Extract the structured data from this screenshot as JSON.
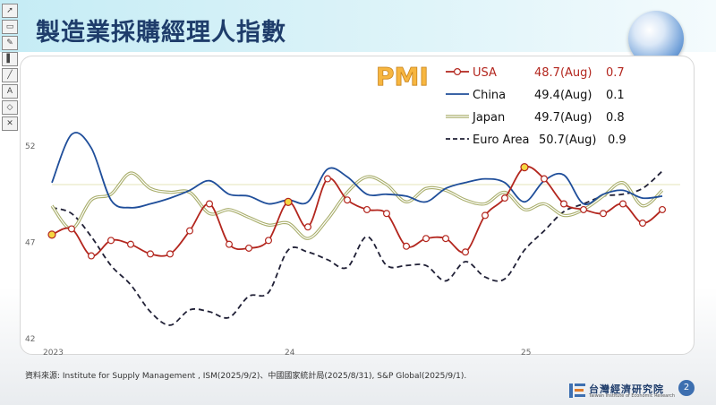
{
  "page": {
    "title": "製造業採購經理人指數",
    "source": "資料來源: Institute for Supply Management , ISM(2025/9/2)、中國國家統計局(2025/8/31), S&P Global(2025/9/1).",
    "logo_text": "台灣經濟研究院",
    "logo_sub": "Taiwan Institute of Economic Research",
    "page_number": "2",
    "toolbar_icons": [
      "pointer-icon",
      "eraser-icon",
      "pen-icon",
      "highlighter-icon",
      "line-icon",
      "text-icon",
      "shape-icon",
      "exit-icon"
    ]
  },
  "chart_data": {
    "type": "line",
    "title": "PMI",
    "x_tick_labels": [
      "2023",
      "24",
      "25"
    ],
    "y_tick_labels": [
      "52",
      "47",
      "42"
    ],
    "ylim": [
      42,
      52.5
    ],
    "legend_position": "top-right",
    "x": [
      "2023-01",
      "2023-02",
      "2023-03",
      "2023-04",
      "2023-05",
      "2023-06",
      "2023-07",
      "2023-08",
      "2023-09",
      "2023-10",
      "2023-11",
      "2023-12",
      "2024-01",
      "2024-02",
      "2024-03",
      "2024-04",
      "2024-05",
      "2024-06",
      "2024-07",
      "2024-08",
      "2024-09",
      "2024-10",
      "2024-11",
      "2024-12",
      "2025-01",
      "2025-02",
      "2025-03",
      "2025-04",
      "2025-05",
      "2025-06",
      "2025-07",
      "2025-08"
    ],
    "series": [
      {
        "name": "USA",
        "color": "#b3261e",
        "style": "solid-markers",
        "legend_value": "48.7(Aug)",
        "legend_change": "0.7",
        "values": [
          47.4,
          47.7,
          46.3,
          47.1,
          46.9,
          46.4,
          46.4,
          47.6,
          49.0,
          46.9,
          46.7,
          47.1,
          49.1,
          47.8,
          50.3,
          49.2,
          48.7,
          48.5,
          46.8,
          47.2,
          47.2,
          46.5,
          48.4,
          49.3,
          50.9,
          50.3,
          49.0,
          48.7,
          48.5,
          49.0,
          48.0,
          48.7
        ],
        "highlight_points": [
          0,
          12,
          24
        ]
      },
      {
        "name": "China",
        "color": "#1f4e9a",
        "style": "solid",
        "legend_value": "49.4(Aug)",
        "legend_change": "0.1",
        "values": [
          50.1,
          52.6,
          51.9,
          49.2,
          48.8,
          49.0,
          49.3,
          49.7,
          50.2,
          49.5,
          49.4,
          49.0,
          49.2,
          49.1,
          50.8,
          50.4,
          49.5,
          49.5,
          49.4,
          49.1,
          49.8,
          50.1,
          50.3,
          50.1,
          49.1,
          50.2,
          50.5,
          49.0,
          49.5,
          49.7,
          49.3,
          49.4
        ]
      },
      {
        "name": "Japan",
        "color": "#a8ad6a",
        "style": "double-line",
        "legend_value": "49.7(Aug)",
        "legend_change": "0.8",
        "values": [
          48.9,
          47.7,
          49.2,
          49.5,
          50.6,
          49.8,
          49.6,
          49.6,
          48.5,
          48.7,
          48.3,
          47.9,
          48.0,
          47.2,
          48.2,
          49.6,
          50.4,
          50.0,
          49.1,
          49.8,
          49.7,
          49.2,
          49.0,
          49.6,
          48.7,
          49.0,
          48.4,
          48.7,
          49.4,
          50.1,
          48.9,
          49.7
        ]
      },
      {
        "name": "Euro Area",
        "color": "#202036",
        "style": "dashed",
        "legend_value": "50.7(Aug)",
        "legend_change": "0.9",
        "values": [
          48.8,
          48.5,
          47.3,
          45.8,
          44.8,
          43.4,
          42.7,
          43.5,
          43.4,
          43.1,
          44.2,
          44.4,
          46.6,
          46.5,
          46.1,
          45.7,
          47.3,
          45.8,
          45.8,
          45.8,
          45.0,
          46.0,
          45.2,
          45.1,
          46.6,
          47.6,
          48.6,
          49.0,
          49.4,
          49.5,
          49.8,
          50.7
        ]
      }
    ]
  }
}
